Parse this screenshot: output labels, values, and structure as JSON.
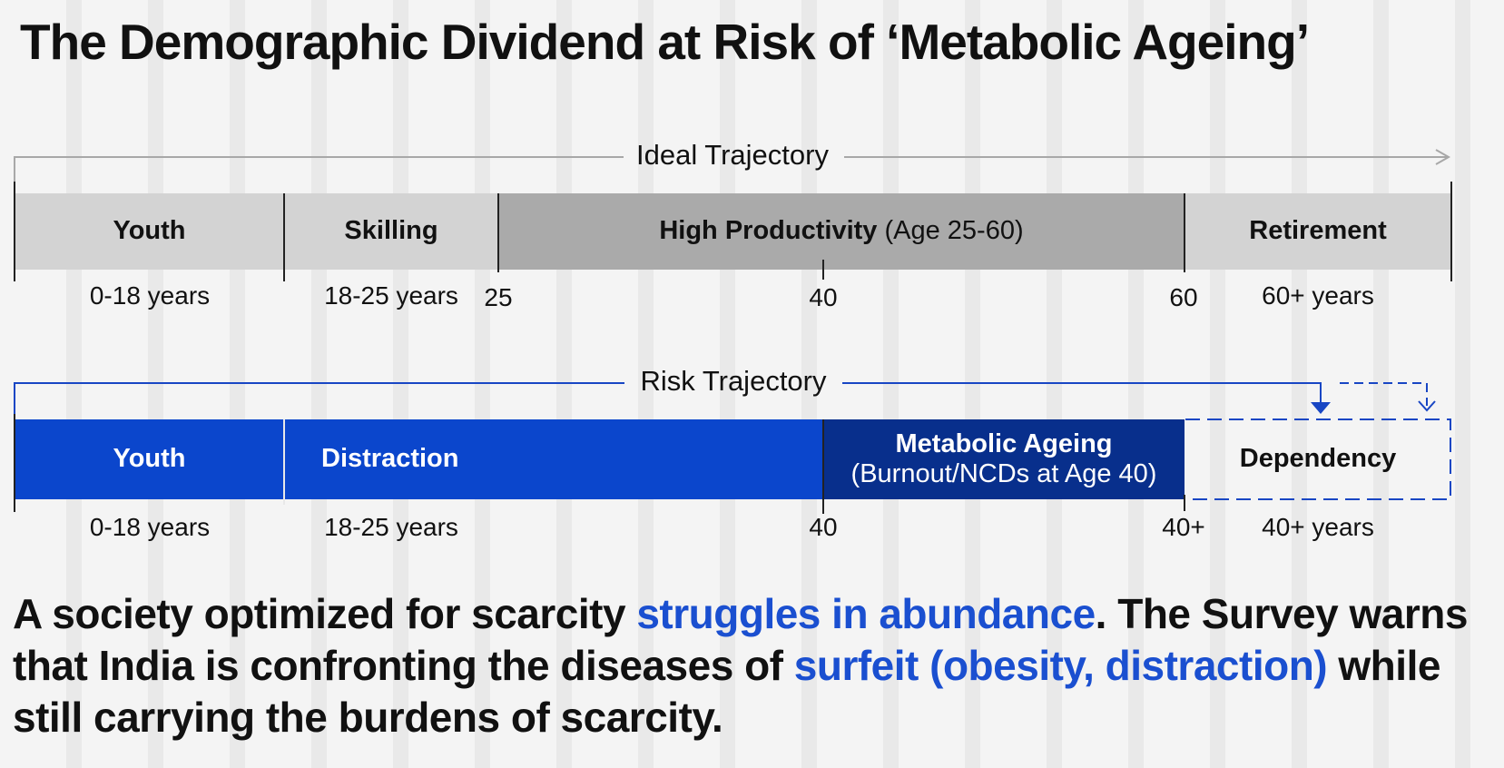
{
  "title": "The Demographic Dividend at Risk of ‘Metabolic Ageing’",
  "ideal": {
    "label": "Ideal Trajectory",
    "segments": {
      "youth": "Youth",
      "skilling": "Skilling",
      "high_productivity": "High Productivity",
      "high_productivity_note": "(Age 25-60)",
      "retirement": "Retirement"
    },
    "labels": {
      "youth_range": "0-18 years",
      "skilling_range": "18-25 years",
      "tick_25": "25",
      "tick_40": "40",
      "tick_60": "60",
      "retirement_range": "60+ years"
    }
  },
  "risk": {
    "label": "Risk Trajectory",
    "segments": {
      "youth": "Youth",
      "distraction": "Distraction",
      "metabolic_ageing": "Metabolic Ageing",
      "metabolic_ageing_note": "(Burnout/NCDs at Age 40)",
      "dependency": "Dependency"
    },
    "labels": {
      "youth_range": "0-18 years",
      "distraction_range": "18-25 years",
      "tick_40": "40",
      "tick_40_plus": "40+",
      "dependency_range": "40+ years"
    }
  },
  "paragraph": {
    "p1": "A society optimized for scarcity ",
    "h1": "struggles in abundance",
    "p2": ". The Survey warns that India is confronting the diseases of ",
    "h2": "surfeit (obesity, distraction)",
    "p3": " while still carrying the burdens of scarcity."
  },
  "colors": {
    "ideal_light": "#d3d3d3",
    "ideal_dark": "#aaaaaa",
    "risk_blue": "#0b46cc",
    "risk_navy": "#082f8c",
    "highlight": "#1a4fd0"
  }
}
